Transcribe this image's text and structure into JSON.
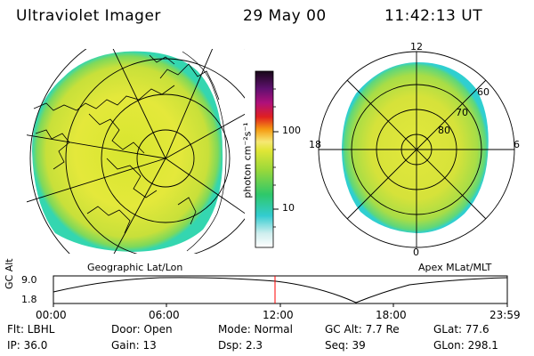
{
  "header": {
    "title": "Ultraviolet Imager",
    "date": "29 May 00",
    "time": "11:42:13 UT"
  },
  "panels": {
    "left_caption": "Geographic Lat/Lon",
    "right_caption": "Apex MLat/MLT"
  },
  "colorbar": {
    "unit_label": "photon cm⁻²s⁻¹",
    "ticks": [
      "100",
      "10"
    ],
    "scale": "log"
  },
  "polar_labels": {
    "mlt": [
      "12",
      "18",
      "6",
      "0"
    ],
    "mlat": [
      "60",
      "70",
      "80"
    ]
  },
  "altitude_plot": {
    "ylabel": "GC Alt",
    "ymax": "9.0",
    "ymin": "1.8",
    "xticks": [
      "00:00",
      "06:00",
      "12:00",
      "18:00",
      "23:59"
    ],
    "current_time_marker": "11:42"
  },
  "footer": {
    "rows": [
      [
        "Flt: LBHL",
        "Door: Open",
        "Mode: Normal",
        "GC Alt: 7.7 Re",
        "GLat:  77.6"
      ],
      [
        "IP: 36.0",
        "Gain: 13",
        "Dsp:    2.3",
        "Seq: 39",
        "GLon: 298.1"
      ]
    ]
  },
  "colors": {
    "marker": "#ff0000",
    "image_main": "#dde63a",
    "image_edge": "#33d6a6"
  }
}
